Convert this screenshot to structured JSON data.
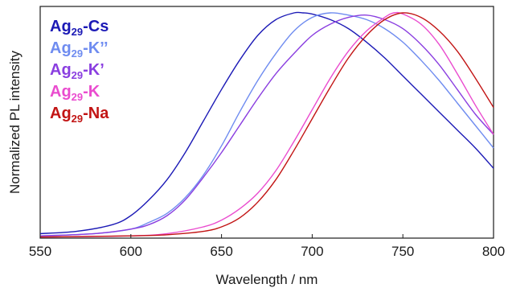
{
  "chart_data": {
    "type": "line",
    "title": "",
    "xlabel": "Wavelength / nm",
    "ylabel": "Normalized PL intensity",
    "xlim": [
      550,
      800
    ],
    "ylim": [
      0,
      1.0
    ],
    "xticks": [
      "550",
      "600",
      "650",
      "700",
      "750",
      "800"
    ],
    "grid": false,
    "legend_position": "top-left",
    "series": [
      {
        "name": "Ag29-Cs",
        "label_main": "Ag",
        "label_sub": "29",
        "label_suffix": "-Cs",
        "color": "#1c1ab6",
        "x": [
          550,
          570,
          590,
          600,
          610,
          620,
          630,
          640,
          650,
          660,
          670,
          680,
          690,
          695,
          700,
          710,
          720,
          730,
          740,
          750,
          760,
          770,
          780,
          790,
          800
        ],
        "y": [
          0.02,
          0.03,
          0.06,
          0.1,
          0.17,
          0.26,
          0.38,
          0.52,
          0.66,
          0.79,
          0.9,
          0.97,
          1.0,
          1.0,
          0.995,
          0.97,
          0.93,
          0.87,
          0.8,
          0.72,
          0.64,
          0.56,
          0.48,
          0.4,
          0.31
        ]
      },
      {
        "name": "Ag29-K''",
        "label_main": "Ag",
        "label_sub": "29",
        "label_suffix": "-K’’",
        "color": "#6f8cf0",
        "x": [
          550,
          580,
          600,
          610,
          620,
          630,
          640,
          650,
          660,
          670,
          680,
          690,
          700,
          710,
          720,
          730,
          740,
          750,
          760,
          770,
          780,
          790,
          800
        ],
        "y": [
          0.01,
          0.02,
          0.04,
          0.07,
          0.11,
          0.18,
          0.28,
          0.41,
          0.56,
          0.7,
          0.82,
          0.92,
          0.98,
          1.0,
          0.99,
          0.97,
          0.93,
          0.87,
          0.79,
          0.7,
          0.6,
          0.5,
          0.4
        ]
      },
      {
        "name": "Ag29-K'",
        "label_main": "Ag",
        "label_sub": "29",
        "label_suffix": "-K’",
        "color": "#8a3ee0",
        "x": [
          550,
          580,
          600,
          610,
          620,
          630,
          640,
          650,
          660,
          670,
          680,
          690,
          700,
          710,
          720,
          730,
          740,
          750,
          760,
          770,
          780,
          790,
          800
        ],
        "y": [
          0.01,
          0.02,
          0.04,
          0.06,
          0.1,
          0.17,
          0.27,
          0.38,
          0.5,
          0.62,
          0.73,
          0.82,
          0.9,
          0.95,
          0.98,
          0.99,
          0.97,
          0.93,
          0.86,
          0.77,
          0.66,
          0.55,
          0.46
        ]
      },
      {
        "name": "Ag29-K",
        "label_main": "Ag",
        "label_sub": "29",
        "label_suffix": "-K",
        "color": "#ea4ccf",
        "x": [
          550,
          600,
          620,
          640,
          650,
          660,
          670,
          680,
          690,
          700,
          710,
          720,
          730,
          740,
          745,
          750,
          760,
          770,
          780,
          790,
          800
        ],
        "y": [
          0.005,
          0.01,
          0.02,
          0.05,
          0.08,
          0.13,
          0.2,
          0.3,
          0.43,
          0.57,
          0.71,
          0.83,
          0.92,
          0.98,
          1.0,
          0.995,
          0.95,
          0.86,
          0.73,
          0.59,
          0.46
        ]
      },
      {
        "name": "Ag29-Na",
        "label_main": "Ag",
        "label_sub": "29",
        "label_suffix": "-Na",
        "color": "#c21414",
        "x": [
          550,
          600,
          620,
          640,
          650,
          660,
          670,
          680,
          690,
          700,
          710,
          720,
          730,
          740,
          750,
          760,
          770,
          780,
          790,
          800
        ],
        "y": [
          0.005,
          0.01,
          0.015,
          0.03,
          0.05,
          0.09,
          0.16,
          0.26,
          0.39,
          0.53,
          0.67,
          0.8,
          0.9,
          0.97,
          1.0,
          0.98,
          0.92,
          0.83,
          0.71,
          0.58
        ]
      }
    ]
  }
}
